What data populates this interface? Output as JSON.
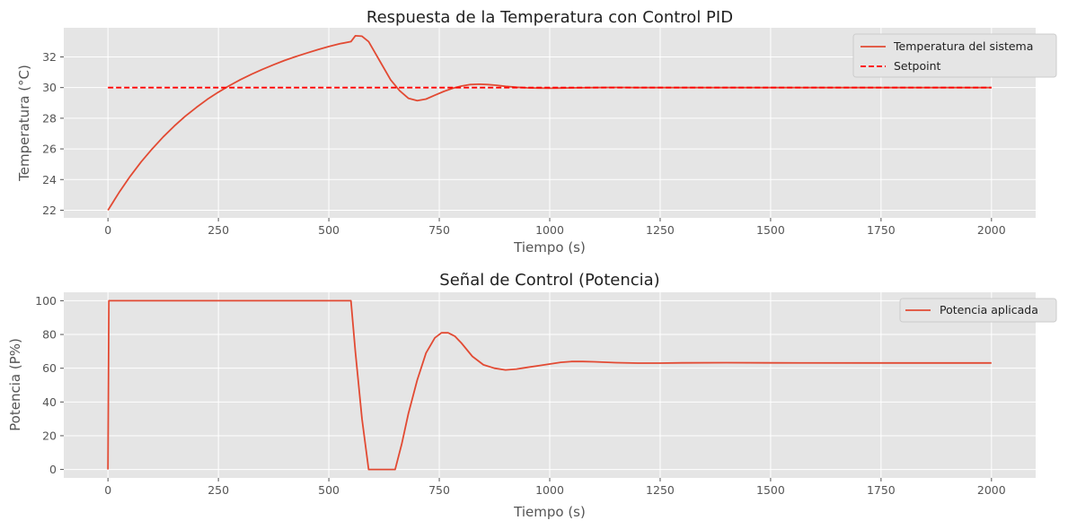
{
  "colors": {
    "background": "#e5e5e5",
    "series": "#e24a33",
    "setpoint": "#ff0000"
  },
  "chart_data": [
    {
      "type": "line",
      "title": "Respuesta de la Temperatura con Control PID",
      "xlabel": "Tiempo (s)",
      "ylabel": "Temperatura (°C)",
      "xlim": [
        -100,
        2100
      ],
      "ylim": [
        21.5,
        33.9
      ],
      "xticks": [
        0,
        250,
        500,
        750,
        1000,
        1250,
        1500,
        1750,
        2000
      ],
      "yticks": [
        22,
        24,
        26,
        28,
        30,
        32
      ],
      "grid": true,
      "legend_position": "top-right",
      "series": [
        {
          "name": "Temperatura del sistema",
          "color": "#e24a33",
          "style": "solid",
          "x": [
            0,
            25,
            50,
            75,
            100,
            125,
            150,
            175,
            200,
            225,
            250,
            275,
            300,
            325,
            350,
            375,
            400,
            425,
            450,
            475,
            500,
            525,
            550,
            560,
            575,
            590,
            600,
            620,
            640,
            660,
            680,
            700,
            720,
            740,
            760,
            780,
            800,
            820,
            840,
            860,
            880,
            900,
            925,
            950,
            975,
            1000,
            1025,
            1050,
            1100,
            1150,
            1200,
            1300,
            1500,
            1750,
            2000
          ],
          "y": [
            22.0,
            23.15,
            24.2,
            25.15,
            26.0,
            26.78,
            27.49,
            28.13,
            28.7,
            29.23,
            29.7,
            30.13,
            30.52,
            30.87,
            31.19,
            31.49,
            31.77,
            32.02,
            32.25,
            32.47,
            32.68,
            32.86,
            33.0,
            33.38,
            33.35,
            33.0,
            32.5,
            31.5,
            30.5,
            29.8,
            29.3,
            29.15,
            29.25,
            29.5,
            29.75,
            29.95,
            30.1,
            30.2,
            30.22,
            30.2,
            30.15,
            30.08,
            30.02,
            29.98,
            29.97,
            29.96,
            29.97,
            29.98,
            30.0,
            30.01,
            30.0,
            30.0,
            30.0,
            30.0,
            30.0
          ]
        },
        {
          "name": "Setpoint",
          "color": "#ff0000",
          "style": "dashed",
          "x": [
            0,
            2000
          ],
          "y": [
            30,
            30
          ]
        }
      ]
    },
    {
      "type": "line",
      "title": "Señal de Control (Potencia)",
      "xlabel": "Tiempo (s)",
      "ylabel": "Potencia (P%)",
      "xlim": [
        -100,
        2100
      ],
      "ylim": [
        -5,
        105
      ],
      "xticks": [
        0,
        250,
        500,
        750,
        1000,
        1250,
        1500,
        1750,
        2000
      ],
      "yticks": [
        0,
        20,
        40,
        60,
        80,
        100
      ],
      "grid": true,
      "legend_position": "top-right",
      "series": [
        {
          "name": "Potencia aplicada",
          "color": "#e24a33",
          "style": "solid",
          "x": [
            0,
            2,
            5,
            545,
            550,
            560,
            575,
            590,
            595,
            650,
            665,
            680,
            700,
            720,
            740,
            755,
            770,
            785,
            800,
            825,
            850,
            875,
            900,
            925,
            950,
            975,
            1000,
            1025,
            1050,
            1075,
            1100,
            1150,
            1200,
            1250,
            1300,
            1400,
            1500,
            1750,
            2000
          ],
          "y": [
            0,
            100,
            100,
            100,
            100,
            70,
            30,
            0,
            0,
            0,
            15,
            33,
            53,
            69,
            78,
            81,
            81,
            79,
            75,
            67,
            62,
            60,
            59,
            59.5,
            60.5,
            61.5,
            62.5,
            63.5,
            64,
            64,
            63.8,
            63.3,
            63,
            63,
            63.2,
            63.3,
            63.2,
            63.1,
            63.1
          ]
        }
      ]
    }
  ]
}
